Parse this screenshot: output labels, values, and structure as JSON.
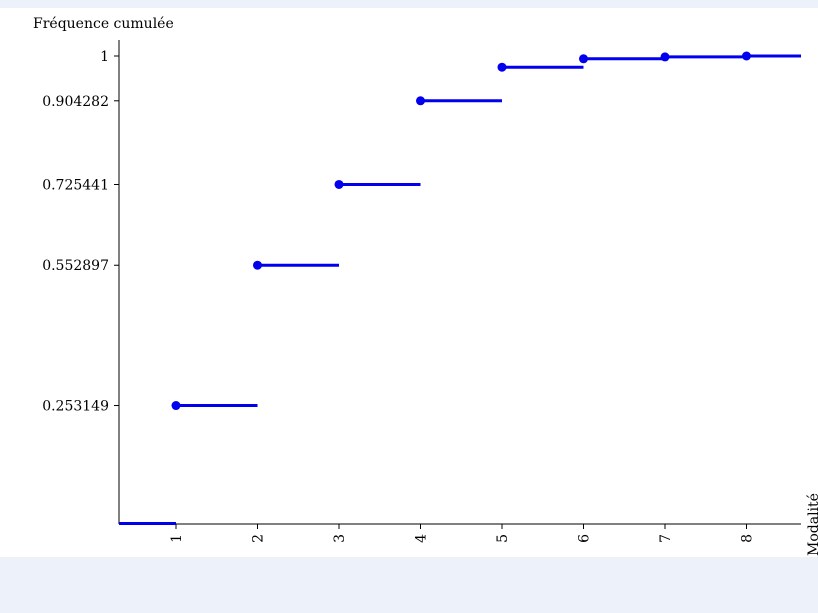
{
  "chart_data": {
    "type": "step",
    "title": "",
    "ylabel": "Fréquence cumulée",
    "xlabel": "Modalité",
    "xlim": [
      0.3,
      8.7
    ],
    "ylim": [
      0,
      1
    ],
    "x_ticks": [
      "1",
      "2",
      "3",
      "4",
      "5",
      "6",
      "7",
      "8"
    ],
    "y_tick_labels": [
      "0.253149",
      "0.552897",
      "0.725441",
      "0.904282",
      "1"
    ],
    "series": [
      {
        "color": "#0000ee",
        "points": [
          {
            "x": 1,
            "y": 0.253149
          },
          {
            "x": 2,
            "y": 0.552897
          },
          {
            "x": 3,
            "y": 0.725441
          },
          {
            "x": 4,
            "y": 0.904282
          },
          {
            "x": 5,
            "y": 0.976
          },
          {
            "x": 6,
            "y": 0.994
          },
          {
            "x": 7,
            "y": 0.998
          },
          {
            "x": 8,
            "y": 1.0
          }
        ]
      }
    ],
    "grid": false,
    "legend": "none"
  }
}
